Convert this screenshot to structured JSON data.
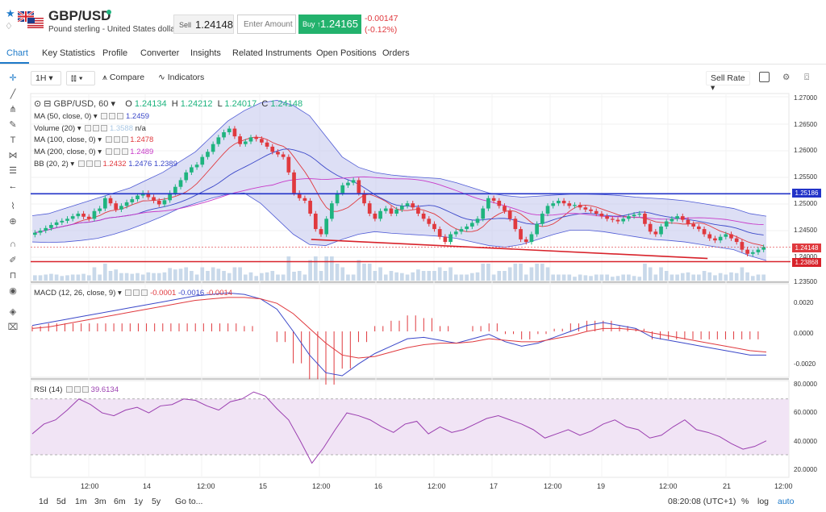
{
  "header": {
    "symbol": "GBP/USD",
    "subtitle": "Pound sterling - United States dollar",
    "sell_label": "Sell",
    "sell_price": "1.24148",
    "amount_placeholder": "Enter Amount",
    "buy_label": "Buy ↑",
    "buy_price": "1.24165",
    "change": "-0.00147",
    "change_pct": "(-0.12%)",
    "colors": {
      "up": "#1fb47f",
      "down": "#e0393e",
      "buy_bg": "#23b26d"
    }
  },
  "tabs": [
    "Chart",
    "Key Statistics",
    "Profile",
    "Converter",
    "Insights",
    "Related Instruments",
    "Open Positions",
    "Orders"
  ],
  "toolbar": {
    "interval": "1H",
    "compare": "Compare",
    "indicators": "Indicators",
    "sell_rate": "Sell Rate"
  },
  "legend": {
    "title": "GBP/USD, 60",
    "o_label": "O",
    "o": "1.24134",
    "h_label": "H",
    "h": "1.24212",
    "l_label": "L",
    "l": "1.24017",
    "c_label": "C",
    "c": "1.24148",
    "ma50": "MA (50, close, 0)",
    "ma50_val": "1.2459",
    "vol": "Volume (20)",
    "vol_val": "1.3588",
    "vol_na": "n/a",
    "ma100": "MA (100, close, 0)",
    "ma100_val": "1.2478",
    "ma200": "MA (200, close, 0)",
    "ma200_val": "1.2489",
    "bb": "BB (20, 2)",
    "bb1": "1.2432",
    "bb2": "1.2476",
    "bb3": "1.2389",
    "macd": "MACD (12, 26, close, 9)",
    "macd1": "-0.0001",
    "macd2": "-0.0016",
    "macd3": "-0.0014",
    "rsi": "RSI (14)",
    "rsi_val": "39.6134"
  },
  "price_axis": [
    "1.27000",
    "1.26500",
    "1.26000",
    "1.25500",
    "1.25000",
    "1.24500",
    "1.24000",
    "1.23500"
  ],
  "price_tags": {
    "blue": "1.25186",
    "current": "1.24148",
    "red": "1.23868"
  },
  "macd_axis": [
    "0.0020",
    "0.0000",
    "-0.0020"
  ],
  "rsi_axis": [
    "80.0000",
    "60.0000",
    "40.0000",
    "20.0000"
  ],
  "time_axis": [
    "12:00",
    "14",
    "12:00",
    "15",
    "12:00",
    "16",
    "12:00",
    "17",
    "12:00",
    "19",
    "12:00",
    "21",
    "12:00"
  ],
  "bottom": {
    "ranges": [
      "1d",
      "5d",
      "1m",
      "3m",
      "6m",
      "1y",
      "5y"
    ],
    "goto": "Go to...",
    "clock": "08:20:08 (UTC+1)",
    "pct": "%",
    "log": "log",
    "auto": "auto"
  },
  "chart_data": {
    "type": "candlestick",
    "pair": "GBP/USD",
    "interval": "60",
    "ohlc_last": {
      "o": 1.24134,
      "h": 1.24212,
      "l": 1.24017,
      "c": 1.24148
    },
    "close": [
      1.2443,
      1.2447,
      1.2452,
      1.2458,
      1.2463,
      1.2466,
      1.247,
      1.2475,
      1.248,
      1.2474,
      1.247,
      1.2485,
      1.249,
      1.251,
      1.25,
      1.2488,
      1.2495,
      1.2502,
      1.2508,
      1.2515,
      1.252,
      1.2512,
      1.2505,
      1.2498,
      1.2506,
      1.252,
      1.2532,
      1.2545,
      1.256,
      1.257,
      1.2575,
      1.259,
      1.26,
      1.2615,
      1.2628,
      1.2638,
      1.2645,
      1.263,
      1.2615,
      1.262,
      1.2628,
      1.2625,
      1.2618,
      1.261,
      1.26,
      1.2595,
      1.259,
      1.256,
      1.252,
      1.251,
      1.2505,
      1.248,
      1.245,
      1.244,
      1.247,
      1.25,
      1.252,
      1.2535,
      1.254,
      1.2545,
      1.252,
      1.25,
      1.248,
      1.247,
      1.2485,
      1.249,
      1.248,
      1.2488,
      1.2495,
      1.25,
      1.2492,
      1.248,
      1.247,
      1.246,
      1.245,
      1.2435,
      1.2425,
      1.244,
      1.2445,
      1.245,
      1.2455,
      1.2462,
      1.247,
      1.249,
      1.251,
      1.2505,
      1.2495,
      1.2485,
      1.247,
      1.245,
      1.243,
      1.2425,
      1.244,
      1.246,
      1.248,
      1.2495,
      1.25,
      1.2505,
      1.25,
      1.2495,
      1.2497,
      1.2492,
      1.2488,
      1.2485,
      1.248,
      1.2475,
      1.247,
      1.2468,
      1.2465,
      1.247,
      1.2475,
      1.2478,
      1.248,
      1.246,
      1.2445,
      1.244,
      1.2455,
      1.2465,
      1.247,
      1.2475,
      1.2468,
      1.246,
      1.2455,
      1.245,
      1.244,
      1.2432,
      1.2428,
      1.2435,
      1.244,
      1.2432,
      1.2425,
      1.241,
      1.2402,
      1.2405,
      1.241,
      1.2415
    ],
    "bb_upper": [
      1.2476,
      1.248,
      1.249,
      1.25,
      1.251,
      1.252,
      1.253,
      1.2545,
      1.256,
      1.258,
      1.26,
      1.263,
      1.266,
      1.268,
      1.2695,
      1.27,
      1.269,
      1.267,
      1.263,
      1.259,
      1.257,
      1.256,
      1.2555,
      1.2552,
      1.255,
      1.2548,
      1.254,
      1.253,
      1.252,
      1.2515,
      1.2512,
      1.2514,
      1.2516,
      1.2518,
      1.2518,
      1.2517,
      1.2515,
      1.2512,
      1.251,
      1.2508,
      1.2505,
      1.25,
      1.2495,
      1.249,
      1.248,
      1.2475
    ],
    "bb_lower": [
      1.2425,
      1.2424,
      1.2425,
      1.2428,
      1.2432,
      1.244,
      1.245,
      1.2462,
      1.2475,
      1.249,
      1.25,
      1.251,
      1.2518,
      1.252,
      1.25,
      1.247,
      1.244,
      1.242,
      1.2418,
      1.243,
      1.244,
      1.2445,
      1.2442,
      1.244,
      1.2438,
      1.2436,
      1.2432,
      1.2425,
      1.2418,
      1.2415,
      1.242,
      1.243,
      1.244,
      1.2448,
      1.2448,
      1.2445,
      1.244,
      1.2435,
      1.243,
      1.2428,
      1.2425,
      1.242,
      1.2415,
      1.241,
      1.2398,
      1.2389
    ],
    "horizontal_lines": {
      "blue": 1.25186,
      "red": 1.23868
    },
    "trendline": [
      [
        1.243,
        0.38
      ],
      [
        1.2393,
        0.92
      ]
    ],
    "ylim": [
      1.235,
      1.271
    ],
    "macd": [
      0.0004,
      0.0006,
      0.0008,
      0.001,
      0.0012,
      0.0014,
      0.0016,
      0.0018,
      0.002,
      0.0022,
      0.0024,
      0.0025,
      0.0026,
      0.0025,
      0.0022,
      0.0015,
      0.0,
      -0.0016,
      -0.0028,
      -0.003,
      -0.0022,
      -0.0015,
      -0.001,
      -0.0005,
      -0.0004,
      -0.0006,
      -0.0008,
      -0.0005,
      -0.0002,
      -0.0007,
      -0.001,
      -0.0008,
      -0.0004,
      0.0,
      0.0004,
      0.0006,
      0.0004,
      0.0002,
      -0.0004,
      -0.0006,
      -0.0008,
      -0.001,
      -0.0012,
      -0.0014,
      -0.0016,
      -0.0016
    ],
    "macd_signal": [
      0.0002,
      0.0003,
      0.0005,
      0.0007,
      0.0009,
      0.0011,
      0.0013,
      0.0015,
      0.0017,
      0.0019,
      0.0021,
      0.0022,
      0.0023,
      0.0023,
      0.0022,
      0.0019,
      0.0012,
      0.0002,
      -0.0008,
      -0.0016,
      -0.0018,
      -0.0017,
      -0.0014,
      -0.0011,
      -0.0009,
      -0.0008,
      -0.0008,
      -0.0007,
      -0.0005,
      -0.0006,
      -0.0007,
      -0.0007,
      -0.0005,
      -0.0003,
      0.0,
      0.0002,
      0.0002,
      0.0001,
      -0.0001,
      -0.0003,
      -0.0005,
      -0.0007,
      -0.0009,
      -0.0011,
      -0.0013,
      -0.0014
    ],
    "macd_ylim": [
      -0.003,
      0.003
    ],
    "rsi": [
      45,
      52,
      55,
      62,
      70,
      66,
      60,
      58,
      62,
      64,
      60,
      65,
      66,
      70,
      69,
      65,
      62,
      68,
      70,
      75,
      72,
      63,
      55,
      40,
      24,
      35,
      48,
      60,
      58,
      55,
      50,
      46,
      52,
      54,
      45,
      50,
      46,
      48,
      52,
      56,
      58,
      55,
      52,
      48,
      42,
      45,
      48,
      44,
      47,
      52,
      55,
      50,
      48,
      42,
      44,
      50,
      55,
      48,
      46,
      43,
      38,
      34,
      36,
      40
    ],
    "rsi_ylim": [
      15,
      82
    ]
  }
}
